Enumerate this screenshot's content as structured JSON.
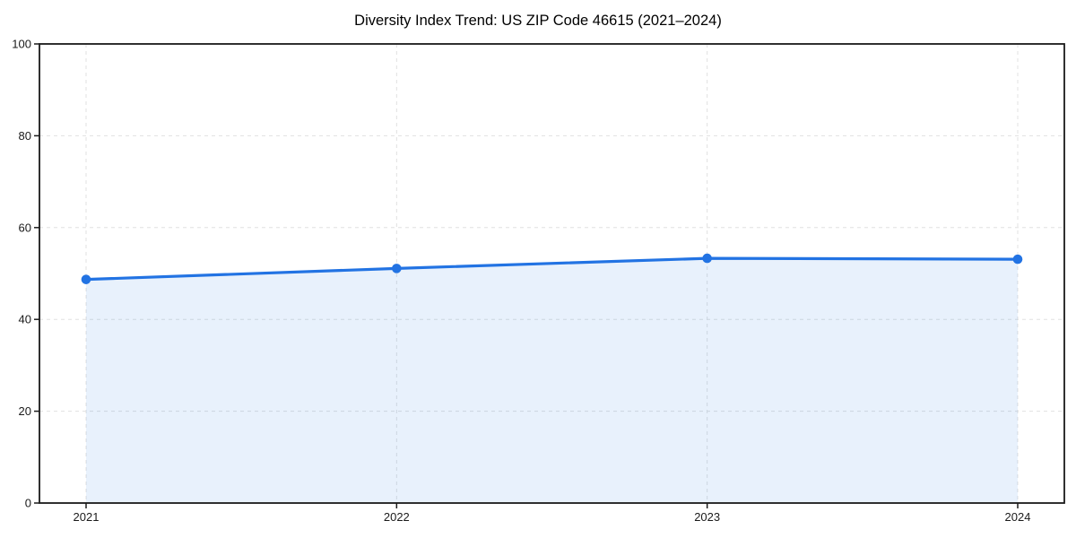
{
  "chart_data": {
    "type": "area",
    "title": "Diversity Index Trend: US ZIP Code 46615 (2021–2024)",
    "categories": [
      "2021",
      "2022",
      "2023",
      "2024"
    ],
    "series": [
      {
        "name": "Diversity Index",
        "values": [
          48.7,
          51.1,
          53.3,
          53.1
        ]
      }
    ],
    "xlabel": "",
    "ylabel": "",
    "ylim": [
      0,
      100
    ],
    "y_ticks": [
      0,
      20,
      40,
      60,
      80,
      100
    ],
    "grid": "dashed-both-axes",
    "legend_position": "none",
    "marker": "circle",
    "colors": {
      "line": "#2273e3",
      "marker_fill": "#2273e3",
      "area_fill": "#2273e3",
      "area_fill_opacity": 0.1,
      "gridline": "#e0e0e0",
      "axis": "#1a1a1a",
      "tick_label": "#1a1a1a",
      "title": "#000000",
      "background": "#ffffff"
    }
  }
}
